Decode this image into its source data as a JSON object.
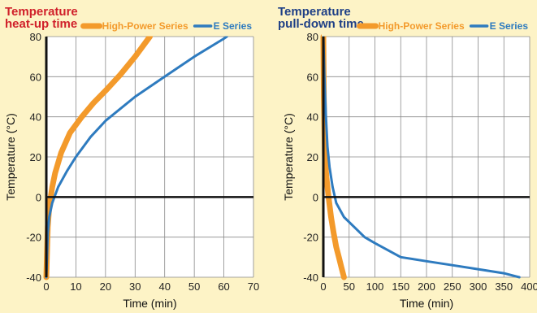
{
  "chart_data": [
    {
      "type": "line",
      "title_lines": [
        "Temperature",
        "heat-up time"
      ],
      "title_color": "#d0202a",
      "xlabel": "Time (min)",
      "ylabel": "Temperature (°C)",
      "xlim": [
        0,
        70
      ],
      "ylim": [
        -40,
        80
      ],
      "xticks": [
        "0",
        "10",
        "20",
        "30",
        "40",
        "50",
        "60",
        "70"
      ],
      "yticks": [
        "-40",
        "-20",
        "0",
        "20",
        "40",
        "60",
        "80"
      ],
      "grid": true,
      "legend": "top-right",
      "series": [
        {
          "name": "High-Power Series",
          "color": "#f39a2b",
          "points": [
            [
              0,
              -40
            ],
            [
              0.5,
              -15
            ],
            [
              1,
              -5
            ],
            [
              2,
              5
            ],
            [
              3,
              12
            ],
            [
              5,
              22
            ],
            [
              8,
              32
            ],
            [
              12,
              40
            ],
            [
              16,
              47
            ],
            [
              20,
              53
            ],
            [
              25,
              61
            ],
            [
              30,
              70
            ],
            [
              35,
              80
            ]
          ]
        },
        {
          "name": "E Series",
          "color": "#2e7bbf",
          "points": [
            [
              0,
              -40
            ],
            [
              0.5,
              -18
            ],
            [
              1,
              -10
            ],
            [
              2,
              -3
            ],
            [
              4,
              5
            ],
            [
              7,
              13
            ],
            [
              10,
              20
            ],
            [
              15,
              30
            ],
            [
              20,
              38
            ],
            [
              30,
              50
            ],
            [
              40,
              60
            ],
            [
              50,
              70
            ],
            [
              60,
              79
            ],
            [
              61,
              80
            ]
          ]
        }
      ]
    },
    {
      "type": "line",
      "title_lines": [
        "Temperature",
        "pull-down time"
      ],
      "title_color": "#1e3f86",
      "xlabel": "Time (min)",
      "ylabel": "Temperature (°C)",
      "xlim": [
        0,
        400
      ],
      "ylim": [
        -40,
        80
      ],
      "xticks": [
        "0",
        "50",
        "100",
        "150",
        "200",
        "250",
        "300",
        "350",
        "400"
      ],
      "yticks": [
        "-40",
        "-20",
        "0",
        "20",
        "40",
        "60",
        "80"
      ],
      "grid": true,
      "legend": "top-right",
      "series": [
        {
          "name": "High-Power Series",
          "color": "#f39a2b",
          "points": [
            [
              0,
              80
            ],
            [
              1,
              50
            ],
            [
              3,
              20
            ],
            [
              6,
              10
            ],
            [
              10,
              0
            ],
            [
              15,
              -10
            ],
            [
              20,
              -18
            ],
            [
              25,
              -25
            ],
            [
              30,
              -30
            ],
            [
              35,
              -35
            ],
            [
              40,
              -40
            ]
          ]
        },
        {
          "name": "E Series",
          "color": "#2e7bbf",
          "points": [
            [
              0,
              80
            ],
            [
              2,
              60
            ],
            [
              5,
              40
            ],
            [
              8,
              25
            ],
            [
              12,
              15
            ],
            [
              18,
              5
            ],
            [
              25,
              -3
            ],
            [
              40,
              -10
            ],
            [
              60,
              -15
            ],
            [
              80,
              -20
            ],
            [
              100,
              -23
            ],
            [
              150,
              -30
            ],
            [
              200,
              -32
            ],
            [
              250,
              -34
            ],
            [
              300,
              -36
            ],
            [
              350,
              -38
            ],
            [
              380,
              -40
            ]
          ]
        }
      ]
    }
  ]
}
